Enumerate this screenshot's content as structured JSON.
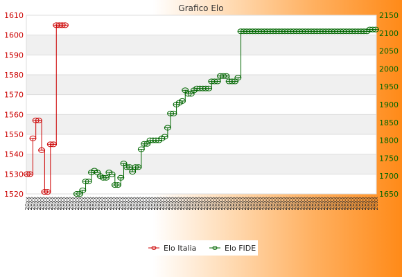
{
  "chart_data": {
    "type": "line",
    "title": "Grafico Elo",
    "grid": true,
    "legend_position": "bottom",
    "left_axis": {
      "ylim": [
        1520,
        1610
      ],
      "ticks": [
        1520,
        1530,
        1540,
        1550,
        1560,
        1570,
        1580,
        1590,
        1600,
        1610
      ],
      "color": "#cc0000"
    },
    "right_axis": {
      "ylim": [
        1650,
        2150
      ],
      "ticks": [
        1650,
        1700,
        1750,
        1800,
        1850,
        1900,
        1950,
        2000,
        2050,
        2100,
        2150
      ],
      "color": "#006600"
    },
    "x_tick_count": 120,
    "x_tick_label": "20xx",
    "series": [
      {
        "name": "Elo Italia",
        "axis": "left",
        "color": "#cc0000",
        "x": [
          0,
          1,
          2,
          3,
          4,
          5,
          6,
          7,
          8,
          9,
          10,
          11,
          12,
          13
        ],
        "values": [
          1530,
          1530,
          1548,
          1557,
          1557,
          1542,
          1521,
          1521,
          1545,
          1545,
          1605,
          1605,
          1605,
          1605
        ]
      },
      {
        "name": "Elo FIDE",
        "axis": "right",
        "color": "#006600",
        "x": [
          17,
          18,
          19,
          20,
          21,
          22,
          23,
          24,
          25,
          26,
          27,
          28,
          29,
          30,
          31,
          32,
          33,
          34,
          35,
          36,
          37,
          38,
          39,
          40,
          41,
          42,
          43,
          44,
          45,
          46,
          47,
          48,
          49,
          50,
          51,
          52,
          53,
          54,
          55,
          56,
          57,
          58,
          59,
          60,
          61,
          62,
          63,
          64,
          65,
          66,
          67,
          68,
          69,
          70,
          71,
          72,
          73,
          74,
          75,
          76,
          77,
          78,
          79,
          80,
          81,
          82,
          83,
          84,
          85,
          86,
          87,
          88,
          89,
          90,
          91,
          92,
          93,
          94,
          95,
          96,
          97,
          98,
          99,
          100,
          101,
          102,
          103,
          104,
          105,
          106,
          107,
          108,
          109,
          110,
          111,
          112,
          113,
          114,
          115,
          116,
          117,
          118,
          119
        ],
        "values": [
          1650,
          1650,
          1660,
          1685,
          1685,
          1710,
          1715,
          1710,
          1700,
          1695,
          1695,
          1710,
          1705,
          1675,
          1675,
          1695,
          1735,
          1725,
          1725,
          1712,
          1725,
          1725,
          1775,
          1790,
          1790,
          1800,
          1800,
          1800,
          1800,
          1805,
          1810,
          1835,
          1875,
          1875,
          1900,
          1905,
          1910,
          1940,
          1930,
          1930,
          1940,
          1945,
          1945,
          1945,
          1945,
          1945,
          1965,
          1965,
          1965,
          1980,
          1980,
          1980,
          1965,
          1965,
          1965,
          1975,
          2105,
          2105,
          2105,
          2105,
          2105,
          2105,
          2105,
          2105,
          2105,
          2105,
          2105,
          2105,
          2105,
          2105,
          2105,
          2105,
          2105,
          2105,
          2105,
          2105,
          2105,
          2105,
          2105,
          2105,
          2105,
          2105,
          2105,
          2105,
          2105,
          2105,
          2105,
          2105,
          2105,
          2105,
          2105,
          2105,
          2105,
          2105,
          2105,
          2105,
          2105,
          2105,
          2105,
          2105,
          2110,
          2110,
          2110
        ]
      }
    ]
  }
}
